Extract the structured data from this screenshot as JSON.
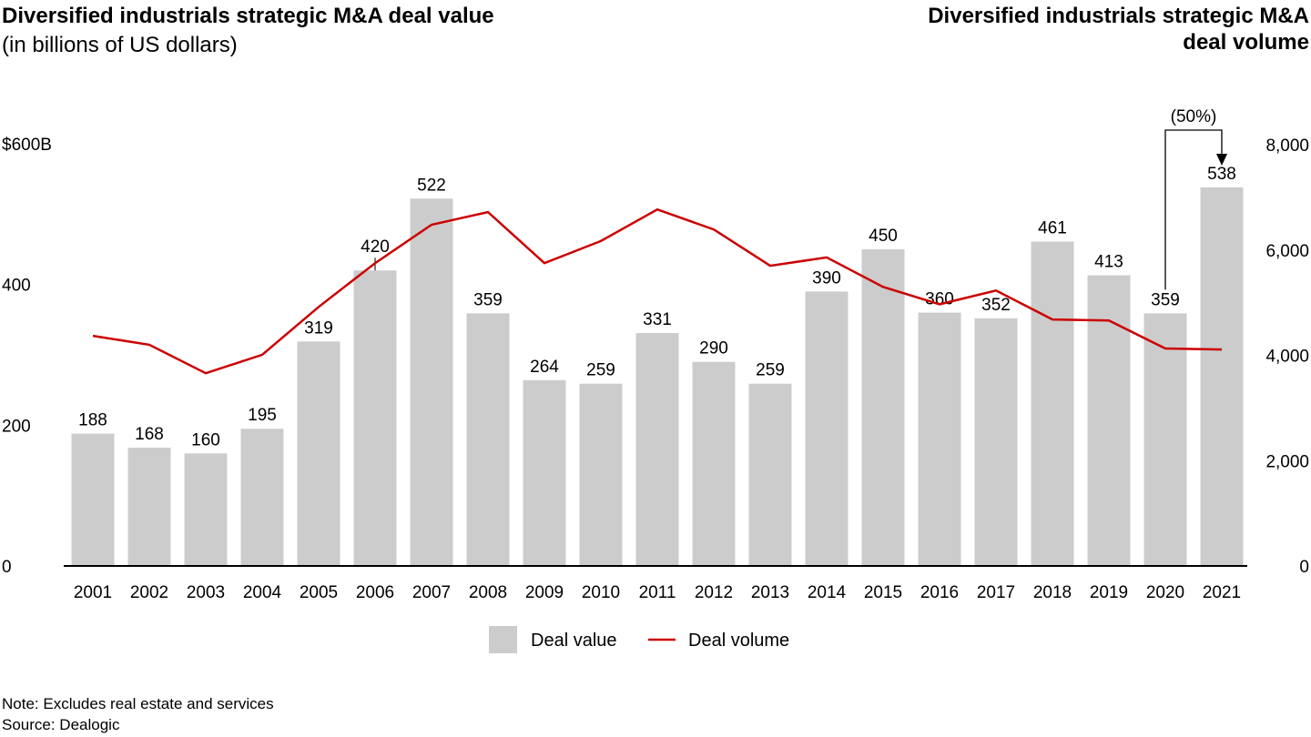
{
  "header": {
    "left_title": "Diversified industrials strategic M&A deal value",
    "left_subtitle": "(in billions of US dollars)",
    "right_title_line1": "Diversified industrials strategic M&A",
    "right_title_line2": "deal volume"
  },
  "footer": {
    "note": "Note: Excludes real estate and services",
    "source": "Source: Dealogic"
  },
  "chart_data": {
    "type": "bar+line",
    "categories": [
      "2001",
      "2002",
      "2003",
      "2004",
      "2005",
      "2006",
      "2007",
      "2008",
      "2009",
      "2010",
      "2011",
      "2012",
      "2013",
      "2014",
      "2015",
      "2016",
      "2017",
      "2018",
      "2019",
      "2020",
      "2021"
    ],
    "series": [
      {
        "name": "Deal value",
        "type": "bar",
        "axis": "left",
        "color": "#cccccc",
        "values": [
          188,
          168,
          160,
          195,
          319,
          420,
          522,
          359,
          264,
          259,
          331,
          290,
          259,
          390,
          450,
          360,
          352,
          461,
          413,
          359,
          538
        ]
      },
      {
        "name": "Deal volume",
        "type": "line",
        "axis": "right",
        "color": "#cc0000",
        "values": [
          4370,
          4200,
          3660,
          4010,
          4920,
          5750,
          6480,
          6720,
          5750,
          6170,
          6770,
          6390,
          5700,
          5860,
          5300,
          4970,
          5230,
          4680,
          4660,
          4130,
          4110
        ]
      }
    ],
    "left_axis": {
      "ticks": [
        "0",
        "200",
        "400",
        "$600B"
      ],
      "tick_values": [
        0,
        200,
        400,
        600
      ],
      "ylim": [
        0,
        600
      ]
    },
    "right_axis": {
      "ticks": [
        "0",
        "2,000",
        "4,000",
        "6,000",
        "8,000"
      ],
      "tick_values": [
        0,
        2000,
        4000,
        6000,
        8000
      ],
      "ylim": [
        0,
        8000
      ]
    },
    "annotation": {
      "text": "(50%)",
      "from": "2020",
      "to": "2021"
    },
    "legend": {
      "placement": "bottom",
      "items": [
        "Deal value",
        "Deal volume"
      ]
    },
    "grid": false
  }
}
